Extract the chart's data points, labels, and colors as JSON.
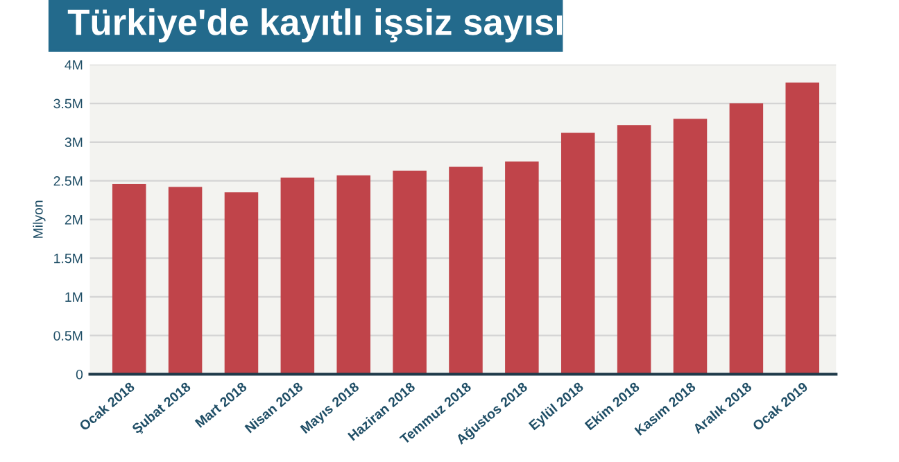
{
  "chart_data": {
    "type": "bar",
    "title": "Türkiye'de kayıtlı işsiz sayısı",
    "ylabel": "Milyon",
    "categories": [
      "Ocak 2018",
      "Şubat 2018",
      "Mart 2018",
      "Nisan 2018",
      "Mayıs 2018",
      "Haziran 2018",
      "Temmuz 2018",
      "Ağustos 2018",
      "Eylül 2018",
      "Ekim 2018",
      "Kasım 2018",
      "Aralık 2018",
      "Ocak 2019"
    ],
    "values": [
      2.46,
      2.42,
      2.35,
      2.54,
      2.57,
      2.63,
      2.68,
      2.75,
      3.12,
      3.22,
      3.3,
      3.5,
      3.77
    ],
    "color": "#c0444a",
    "ylim": [
      0,
      4
    ],
    "yticks": [
      0,
      {
        "value": 0.5,
        "label": "0.5M"
      },
      {
        "value": 1,
        "label": "1M"
      },
      {
        "value": 1.5,
        "label": "1.5M"
      },
      {
        "value": 2,
        "label": "2M"
      },
      {
        "value": 2.5,
        "label": "2.5M"
      },
      {
        "value": 3,
        "label": "3M"
      },
      {
        "value": 3.5,
        "label": "3.5M"
      },
      {
        "value": 4,
        "label": "4M"
      }
    ],
    "grid": "y"
  }
}
